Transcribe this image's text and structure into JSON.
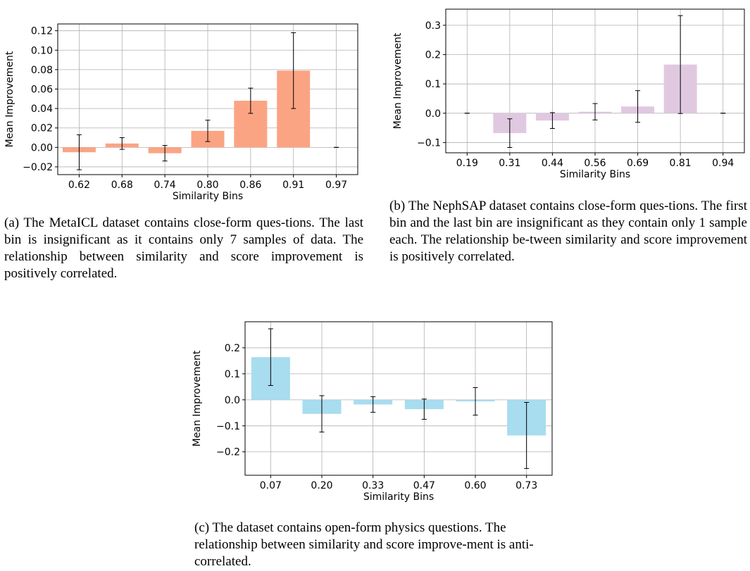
{
  "chart_data": [
    {
      "type": "bar",
      "id": "a",
      "categories": [
        "0.62",
        "0.68",
        "0.74",
        "0.80",
        "0.86",
        "0.91",
        "0.97"
      ],
      "values": [
        -0.005,
        0.004,
        -0.006,
        0.017,
        0.048,
        0.079,
        0.0
      ],
      "error": [
        0.018,
        0.006,
        0.008,
        0.011,
        0.013,
        0.039,
        0.0
      ],
      "title": "",
      "xlabel": "Similarity Bins",
      "ylabel": "Mean Improvement",
      "ylim": [
        -0.028,
        0.127
      ],
      "yticks": [
        -0.02,
        0.0,
        0.02,
        0.04,
        0.06,
        0.08,
        0.1,
        0.12
      ],
      "ytick_labels": [
        "−0.02",
        "0.00",
        "0.02",
        "0.04",
        "0.06",
        "0.08",
        "0.10",
        "0.12"
      ],
      "color": "#fba484",
      "grid": true
    },
    {
      "type": "bar",
      "id": "b",
      "categories": [
        "0.19",
        "0.31",
        "0.44",
        "0.56",
        "0.69",
        "0.81",
        "0.94"
      ],
      "values": [
        0.0,
        -0.068,
        -0.025,
        0.005,
        0.023,
        0.166,
        0.0
      ],
      "error": [
        0.0,
        0.049,
        0.027,
        0.028,
        0.054,
        0.167,
        0.0
      ],
      "title": "",
      "xlabel": "Similarity Bins",
      "ylabel": "Mean Improvement",
      "ylim": [
        -0.135,
        0.355
      ],
      "yticks": [
        -0.1,
        0.0,
        0.1,
        0.2,
        0.3
      ],
      "ytick_labels": [
        "−0.1",
        "0.0",
        "0.1",
        "0.2",
        "0.3"
      ],
      "color": "#e0c9e0",
      "grid": true
    },
    {
      "type": "bar",
      "id": "c",
      "categories": [
        "0.07",
        "0.20",
        "0.33",
        "0.47",
        "0.60",
        "0.73"
      ],
      "values": [
        0.164,
        -0.054,
        -0.018,
        -0.036,
        -0.006,
        -0.137
      ],
      "error": [
        0.109,
        0.07,
        0.03,
        0.039,
        0.053,
        0.127
      ],
      "title": "",
      "xlabel": "Similarity Bins",
      "ylabel": "Mean Improvement",
      "ylim": [
        -0.29,
        0.3
      ],
      "yticks": [
        -0.2,
        -0.1,
        0.0,
        0.1,
        0.2
      ],
      "ytick_labels": [
        "−0.2",
        "−0.1",
        "0.0",
        "0.1",
        "0.2"
      ],
      "color": "#a8dcef",
      "grid": true
    }
  ],
  "captions": {
    "a": "(a) The MetaICL dataset contains close-form ques-tions. The last bin is insignificant as it contains only 7 samples of data. The relationship between similarity and score improvement is positively correlated.",
    "b": "(b) The NephSAP dataset contains close-form ques-tions. The first bin and the last bin are insignificant as they contain only 1 sample each. The relationship be-tween similarity and score improvement is positively correlated.",
    "c": "(c) The dataset contains open-form physics questions. The relationship between similarity and score improve-ment is anti-correlated."
  }
}
